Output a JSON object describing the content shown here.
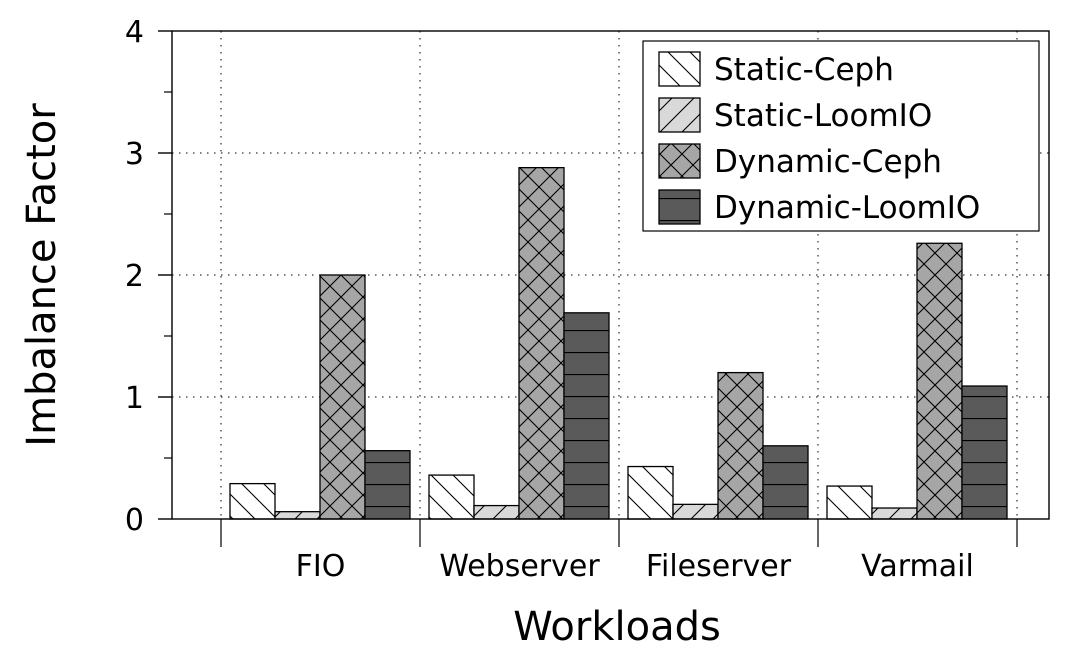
{
  "chart_data": {
    "type": "bar",
    "xlabel": "Workloads",
    "ylabel": "Imbalance Factor",
    "ylim": [
      0,
      4
    ],
    "yticks": [
      "0",
      "1",
      "2",
      "3",
      "4"
    ],
    "categories": [
      "FIO",
      "Webserver",
      "Fileserver",
      "Varmail"
    ],
    "series": [
      {
        "name": "Static-Ceph",
        "values": [
          0.29,
          0.36,
          0.43,
          0.27
        ],
        "color": "#ffffff",
        "pattern": "back-diagonal"
      },
      {
        "name": "Static-LoomIO",
        "values": [
          0.06,
          0.11,
          0.12,
          0.09
        ],
        "color": "#d9d9d9",
        "pattern": "forward-diagonal"
      },
      {
        "name": "Dynamic-Ceph",
        "values": [
          2.0,
          2.88,
          1.2,
          2.26
        ],
        "color": "#a6a6a6",
        "pattern": "crosshatch"
      },
      {
        "name": "Dynamic-LoomIO",
        "values": [
          0.56,
          1.69,
          0.6,
          1.09
        ],
        "color": "#5a5a5a",
        "pattern": "horizontal"
      }
    ],
    "grid": true,
    "legend": "top-right"
  }
}
